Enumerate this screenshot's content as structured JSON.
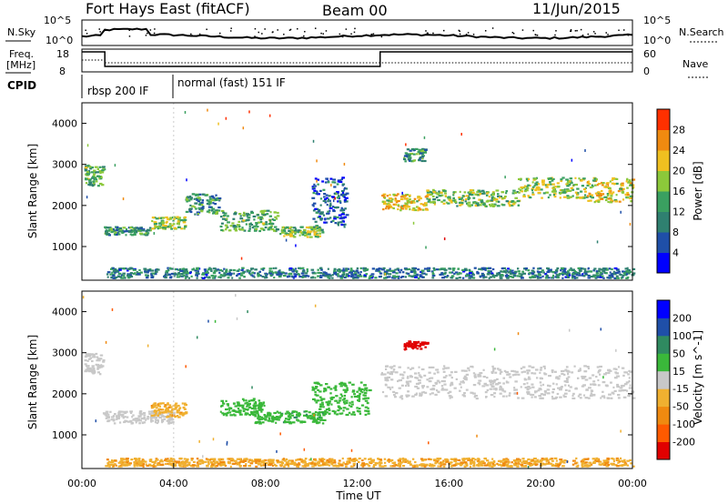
{
  "header": {
    "site": "Fort Hays East (fitACF)",
    "beam": "Beam 00",
    "date": "11/Jun/2015"
  },
  "noise_panel": {
    "left_label": "N.Sky",
    "right_label": "N.Search",
    "left_ticks": [
      "10^5",
      "10^0"
    ],
    "right_ticks": [
      "10^5",
      "10^0"
    ]
  },
  "freq_panel": {
    "left_label": "Freq.",
    "left_unit": "[MHz]",
    "right_label": "Nave",
    "left_ticks": [
      "18",
      "8"
    ],
    "right_ticks": [
      "60",
      "0"
    ],
    "freq_steps": [
      [
        0,
        1,
        18
      ],
      [
        1,
        13,
        8
      ],
      [
        13,
        24,
        18
      ]
    ],
    "nave_steps": [
      [
        0,
        1,
        18
      ],
      [
        1,
        24,
        20
      ]
    ]
  },
  "cpid_panel": {
    "label": "CPID",
    "segments": [
      "rbsp 200 IF",
      "normal (fast) 151 IF"
    ],
    "boundaries_hours": [
      0,
      4
    ]
  },
  "colors": {
    "power_scale": [
      "#0000ff",
      "#1f4fa8",
      "#2f8070",
      "#3aa060",
      "#8cc83a",
      "#f0c020",
      "#f08a10",
      "#ff3000",
      "#e00000"
    ],
    "velocity_scale": [
      "#e00000",
      "#ff5a00",
      "#f08a10",
      "#f0b030",
      "#c8c8c8",
      "#3ab83a",
      "#2f8a60",
      "#1f4fa8",
      "#0000ff"
    ]
  },
  "chart_data": [
    {
      "type": "heatmap",
      "title": "",
      "xlabel": "",
      "ylabel": "Slant Range [km]",
      "color_label": "Power [dB]",
      "xlim_hours": [
        0,
        24
      ],
      "ylim_km": [
        180,
        4500
      ],
      "yticks": [
        1000,
        2000,
        3000,
        4000
      ],
      "color_ticks": [
        "4",
        "8",
        "12",
        "16",
        "20",
        "24",
        "28"
      ],
      "color_range": [
        0,
        30
      ],
      "echo_regions": [
        {
          "t0": 0.1,
          "t1": 0.9,
          "r0": 2500,
          "r1": 3000,
          "v": 12
        },
        {
          "t0": 0.9,
          "t1": 3.0,
          "r0": 1300,
          "r1": 1500,
          "v": 10
        },
        {
          "t0": 3.0,
          "t1": 4.5,
          "r0": 1450,
          "r1": 1750,
          "v": 15
        },
        {
          "t0": 4.5,
          "t1": 6.0,
          "r0": 1800,
          "r1": 2300,
          "v": 10
        },
        {
          "t0": 6.0,
          "t1": 8.5,
          "r0": 1400,
          "r1": 1900,
          "v": 12
        },
        {
          "t0": 8.5,
          "t1": 10.5,
          "r0": 1250,
          "r1": 1500,
          "v": 14
        },
        {
          "t0": 10.0,
          "t1": 11.5,
          "r0": 1500,
          "r1": 2700,
          "v": 6
        },
        {
          "t0": 13.0,
          "t1": 15.0,
          "r0": 1900,
          "r1": 2300,
          "v": 18
        },
        {
          "t0": 14.0,
          "t1": 15.0,
          "r0": 3100,
          "r1": 3400,
          "v": 10
        },
        {
          "t0": 15.0,
          "t1": 19.0,
          "r0": 2000,
          "r1": 2400,
          "v": 14
        },
        {
          "t0": 19.0,
          "t1": 22.0,
          "r0": 2200,
          "r1": 2700,
          "v": 15
        },
        {
          "t0": 22.0,
          "t1": 24.0,
          "r0": 2100,
          "r1": 2700,
          "v": 17
        },
        {
          "t0": 1.0,
          "t1": 24.0,
          "r0": 250,
          "r1": 500,
          "v": 8
        }
      ]
    },
    {
      "type": "heatmap",
      "title": "",
      "xlabel": "Time UT",
      "ylabel": "Slant Range [km]",
      "color_label": "Velocity [m s^-1]",
      "xlim_hours": [
        0,
        24
      ],
      "ylim_km": [
        180,
        4500
      ],
      "yticks": [
        1000,
        2000,
        3000,
        4000
      ],
      "xticks": [
        "00:00",
        "04:00",
        "08:00",
        "12:00",
        "16:00",
        "20:00",
        "00:00"
      ],
      "color_ticks": [
        "-200",
        "-100",
        "-50",
        "-15",
        "15",
        "50",
        "100",
        "200"
      ],
      "echo_regions": [
        {
          "t0": 0.1,
          "t1": 0.9,
          "r0": 2500,
          "r1": 3000,
          "v": 0
        },
        {
          "t0": 0.9,
          "t1": 4.0,
          "r0": 1300,
          "r1": 1600,
          "v": 0
        },
        {
          "t0": 3.0,
          "t1": 4.5,
          "r0": 1450,
          "r1": 1800,
          "v": -40
        },
        {
          "t0": 6.0,
          "t1": 8.0,
          "r0": 1500,
          "r1": 1900,
          "v": 30
        },
        {
          "t0": 7.5,
          "t1": 10.5,
          "r0": 1300,
          "r1": 1600,
          "v": 40
        },
        {
          "t0": 10.0,
          "t1": 12.5,
          "r0": 1500,
          "r1": 2300,
          "v": 30
        },
        {
          "t0": 14.0,
          "t1": 15.0,
          "r0": 3100,
          "r1": 3300,
          "v": -220
        },
        {
          "t0": 13.0,
          "t1": 24.0,
          "r0": 1900,
          "r1": 2700,
          "v": 0
        },
        {
          "t0": 1.0,
          "t1": 24.0,
          "r0": 250,
          "r1": 450,
          "v": -45
        }
      ]
    }
  ]
}
